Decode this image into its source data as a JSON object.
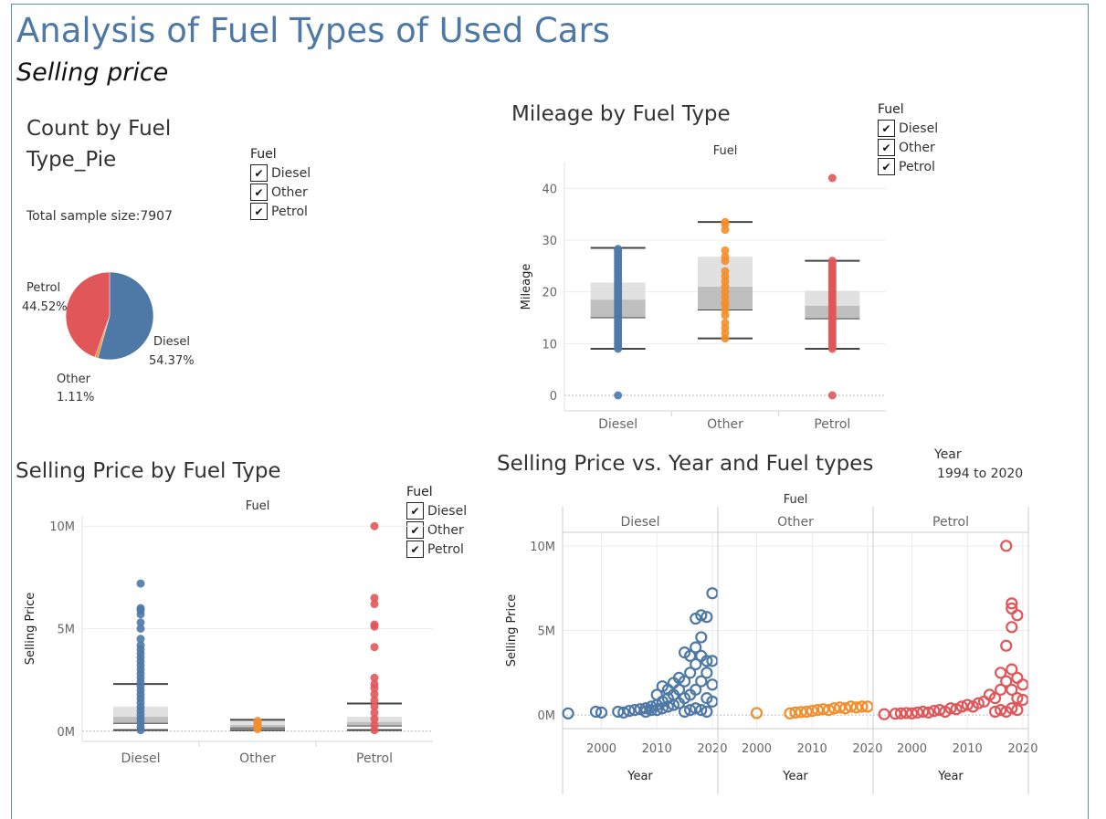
{
  "header": {
    "title": "Analysis of Fuel Types of Used Cars",
    "subtitle": "Selling price"
  },
  "colors": {
    "Diesel": "#4e79a7",
    "Other": "#f28e2b",
    "Petrol": "#e15759",
    "title": "#4e79a7"
  },
  "pie": {
    "title_line1": "Count by Fuel",
    "title_line2": "Type_Pie",
    "sample_note": "Total sample size:7907",
    "legend_title": "Fuel",
    "legend": [
      "Diesel",
      "Other",
      "Petrol"
    ]
  },
  "mileage": {
    "title": "Mileage by Fuel Type",
    "legend_title": "Fuel",
    "legend": [
      "Diesel",
      "Other",
      "Petrol"
    ]
  },
  "price_box": {
    "title": "Selling Price by Fuel Type",
    "legend_title": "Fuel",
    "legend": [
      "Diesel",
      "Other",
      "Petrol"
    ]
  },
  "scatter": {
    "title": "Selling Price vs. Year and Fuel types",
    "filter_title": "Year",
    "filter_value": "1994 to 2020"
  },
  "chart_data": [
    {
      "type": "pie",
      "slices": [
        {
          "label": "Diesel",
          "value": 54.37,
          "display": "54.37%"
        },
        {
          "label": "Other",
          "value": 1.11,
          "display": "1.11%"
        },
        {
          "label": "Petrol",
          "value": 44.52,
          "display": "44.52%"
        }
      ]
    },
    {
      "type": "box",
      "header": "Fuel",
      "categories": [
        "Diesel",
        "Other",
        "Petrol"
      ],
      "ylabel": "Mileage",
      "ylim": [
        -3,
        45
      ],
      "yticks": [
        0,
        10,
        20,
        30,
        40
      ],
      "ytick_labels": [
        "0",
        "10",
        "20",
        "30",
        "40"
      ],
      "boxes": [
        {
          "category": "Diesel",
          "whisker_low": 9,
          "q1": 15,
          "median": 18.5,
          "q3": 21.8,
          "whisker_high": 28.5,
          "points": [
            0,
            9,
            9.5,
            10,
            10.5,
            11,
            11.5,
            12,
            12.5,
            13,
            13.5,
            14,
            14.5,
            15,
            15.5,
            16,
            16.5,
            17,
            17.5,
            18,
            18.5,
            19,
            19.5,
            20,
            20.5,
            21,
            21.5,
            22,
            22.5,
            23,
            23.5,
            24,
            24.5,
            25,
            25.5,
            26,
            26.5,
            27,
            27.5,
            28,
            28.3
          ]
        },
        {
          "category": "Other",
          "whisker_low": 11,
          "q1": 16.5,
          "median": 21,
          "q3": 26.8,
          "whisker_high": 33.5,
          "points": [
            11,
            12,
            13,
            14,
            15.5,
            16.5,
            17.5,
            18,
            19,
            20,
            21,
            22,
            23,
            24,
            26,
            26.8,
            28,
            32,
            33,
            33.5
          ]
        },
        {
          "category": "Petrol",
          "whisker_low": 9,
          "q1": 14.8,
          "median": 17.3,
          "q3": 20.2,
          "whisker_high": 26,
          "points": [
            0,
            9,
            9.5,
            10,
            10.5,
            11,
            11.5,
            12,
            12.5,
            13,
            13.5,
            14,
            14.5,
            15,
            15.5,
            16,
            16.5,
            17,
            17.5,
            18,
            18.5,
            19,
            19.5,
            20,
            20.5,
            21,
            21.5,
            22,
            22.5,
            23,
            23.5,
            24,
            24.5,
            25,
            25.5,
            26,
            42
          ]
        }
      ]
    },
    {
      "type": "box",
      "header": "Fuel",
      "categories": [
        "Diesel",
        "Other",
        "Petrol"
      ],
      "ylabel": "Selling Price",
      "ylim": [
        -0.5,
        10.5
      ],
      "yticks": [
        0,
        5,
        10
      ],
      "ytick_labels": [
        "0M",
        "5M",
        "10M"
      ],
      "unit": "millions",
      "boxes": [
        {
          "category": "Diesel",
          "whisker_low": 0.05,
          "q1": 0.38,
          "median": 0.7,
          "q3": 1.2,
          "whisker_high": 2.3,
          "points": [
            0.05,
            0.2,
            0.4,
            0.6,
            0.8,
            1.0,
            1.2,
            1.4,
            1.6,
            1.8,
            2.0,
            2.2,
            2.4,
            2.6,
            2.8,
            3.0,
            3.2,
            3.4,
            3.6,
            3.8,
            4.0,
            4.2,
            4.5,
            5.0,
            5.3,
            5.7,
            5.9,
            6.0,
            7.2
          ]
        },
        {
          "category": "Other",
          "whisker_low": 0.05,
          "q1": 0.15,
          "median": 0.3,
          "q3": 0.5,
          "whisker_high": 0.55,
          "points": [
            0.1,
            0.2,
            0.3,
            0.4,
            0.5
          ]
        },
        {
          "category": "Petrol",
          "whisker_low": 0.05,
          "q1": 0.25,
          "median": 0.45,
          "q3": 0.7,
          "whisker_high": 1.35,
          "points": [
            0.05,
            0.3,
            0.6,
            0.9,
            1.2,
            1.5,
            1.8,
            2.1,
            2.3,
            2.6,
            4.1,
            5.1,
            5.2,
            6.2,
            6.5,
            10.0
          ]
        }
      ]
    },
    {
      "type": "scatter",
      "header": "Fuel",
      "panels": [
        "Diesel",
        "Other",
        "Petrol"
      ],
      "xlabel": "Year",
      "ylabel": "Selling Price",
      "xlim": [
        1993,
        2021
      ],
      "xticks": [
        2000,
        2010,
        2020
      ],
      "ylim": [
        -0.8,
        10.8
      ],
      "yticks": [
        0,
        5,
        10
      ],
      "ytick_labels": [
        "0M",
        "5M",
        "10M"
      ],
      "unit": "millions",
      "series": [
        {
          "name": "Diesel",
          "points": [
            [
              1994,
              0.1
            ],
            [
              1999,
              0.2
            ],
            [
              2000,
              0.15
            ],
            [
              2003,
              0.2
            ],
            [
              2004,
              0.15
            ],
            [
              2005,
              0.25
            ],
            [
              2006,
              0.3
            ],
            [
              2007,
              0.35
            ],
            [
              2008,
              0.4
            ],
            [
              2008,
              0.2
            ],
            [
              2009,
              0.5
            ],
            [
              2009,
              0.3
            ],
            [
              2010,
              0.6
            ],
            [
              2010,
              0.3
            ],
            [
              2010,
              1.2
            ],
            [
              2011,
              0.8
            ],
            [
              2011,
              0.4
            ],
            [
              2011,
              1.7
            ],
            [
              2012,
              1.0
            ],
            [
              2012,
              0.5
            ],
            [
              2012,
              1.5
            ],
            [
              2013,
              1.2
            ],
            [
              2013,
              0.6
            ],
            [
              2013,
              1.9
            ],
            [
              2014,
              1.5
            ],
            [
              2014,
              0.7
            ],
            [
              2014,
              2.2
            ],
            [
              2015,
              2.0
            ],
            [
              2015,
              1.0
            ],
            [
              2015,
              3.7
            ],
            [
              2016,
              2.5
            ],
            [
              2016,
              1.2
            ],
            [
              2016,
              3.5
            ],
            [
              2017,
              3.0
            ],
            [
              2017,
              1.5
            ],
            [
              2017,
              4.0
            ],
            [
              2017,
              5.7
            ],
            [
              2018,
              3.5
            ],
            [
              2018,
              2.0
            ],
            [
              2018,
              5.9
            ],
            [
              2018,
              4.6
            ],
            [
              2019,
              2.5
            ],
            [
              2019,
              1.0
            ],
            [
              2019,
              5.8
            ],
            [
              2019,
              3.2
            ],
            [
              2020,
              7.2
            ],
            [
              2020,
              3.2
            ],
            [
              2020,
              0.8
            ],
            [
              2020,
              1.8
            ],
            [
              2019,
              0.2
            ],
            [
              2018,
              0.3
            ],
            [
              2017,
              0.4
            ],
            [
              2016,
              0.3
            ],
            [
              2015,
              0.2
            ]
          ]
        },
        {
          "name": "Other",
          "points": [
            [
              2000,
              0.12
            ],
            [
              2006,
              0.1
            ],
            [
              2007,
              0.15
            ],
            [
              2008,
              0.18
            ],
            [
              2009,
              0.2
            ],
            [
              2010,
              0.25
            ],
            [
              2011,
              0.3
            ],
            [
              2012,
              0.35
            ],
            [
              2013,
              0.3
            ],
            [
              2014,
              0.4
            ],
            [
              2015,
              0.45
            ],
            [
              2016,
              0.4
            ],
            [
              2017,
              0.5
            ],
            [
              2018,
              0.45
            ],
            [
              2019,
              0.5
            ],
            [
              2020,
              0.5
            ]
          ]
        },
        {
          "name": "Petrol",
          "points": [
            [
              1995,
              0.05
            ],
            [
              1997,
              0.08
            ],
            [
              1998,
              0.1
            ],
            [
              1999,
              0.12
            ],
            [
              2000,
              0.1
            ],
            [
              2001,
              0.15
            ],
            [
              2002,
              0.2
            ],
            [
              2003,
              0.15
            ],
            [
              2004,
              0.25
            ],
            [
              2005,
              0.3
            ],
            [
              2006,
              0.2
            ],
            [
              2007,
              0.4
            ],
            [
              2008,
              0.35
            ],
            [
              2009,
              0.5
            ],
            [
              2010,
              0.6
            ],
            [
              2011,
              0.5
            ],
            [
              2012,
              0.7
            ],
            [
              2013,
              0.8
            ],
            [
              2014,
              1.2
            ],
            [
              2015,
              1.0
            ],
            [
              2016,
              1.5
            ],
            [
              2016,
              2.5
            ],
            [
              2017,
              2.0
            ],
            [
              2017,
              4.1
            ],
            [
              2017,
              10.0
            ],
            [
              2018,
              2.7
            ],
            [
              2018,
              1.5
            ],
            [
              2018,
              5.2
            ],
            [
              2018,
              6.3
            ],
            [
              2018,
              6.6
            ],
            [
              2019,
              2.2
            ],
            [
              2019,
              1.0
            ],
            [
              2019,
              5.9
            ],
            [
              2020,
              1.8
            ],
            [
              2020,
              0.9
            ],
            [
              2019,
              0.3
            ],
            [
              2018,
              0.4
            ],
            [
              2017,
              0.2
            ],
            [
              2016,
              0.3
            ],
            [
              2015,
              0.2
            ]
          ]
        }
      ]
    }
  ]
}
